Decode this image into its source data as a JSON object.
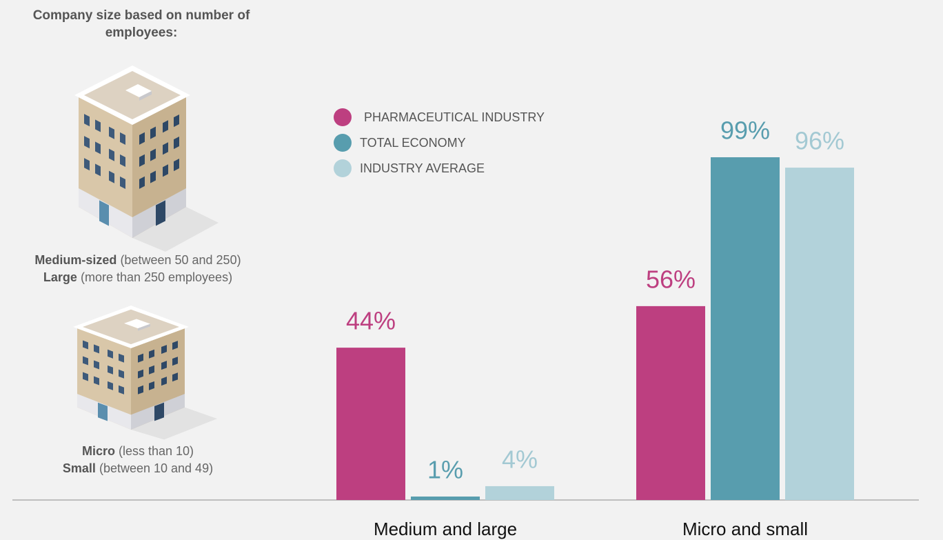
{
  "chart_data": {
    "type": "bar",
    "title": "Company size based on number of employees:",
    "size_groups": [
      [
        {
          "bold": "Medium-sized",
          "text": "(between 50 and 250)"
        },
        {
          "bold": "Large",
          "text": "(more than 250 employees)"
        }
      ],
      [
        {
          "bold": "Micro",
          "text": "(less than 10)"
        },
        {
          "bold": "Small",
          "text": "(between 10 and 49)"
        }
      ]
    ],
    "categories": [
      "Medium and large",
      "Micro and small"
    ],
    "series": [
      {
        "name": "PHARMACEUTICAL INDUSTRY",
        "color": "#bd3f80",
        "values": [
          44,
          56
        ],
        "value_labels": [
          "44%",
          "56%"
        ]
      },
      {
        "name": "TOTAL ECONOMY",
        "color": "#589dae",
        "values": [
          1,
          99
        ],
        "value_labels": [
          "1%",
          "99%"
        ]
      },
      {
        "name": "INDUSTRY AVERAGE",
        "color": "#b2d2da",
        "values": [
          4,
          96
        ],
        "value_labels": [
          "4%",
          "96%"
        ]
      }
    ]
  }
}
